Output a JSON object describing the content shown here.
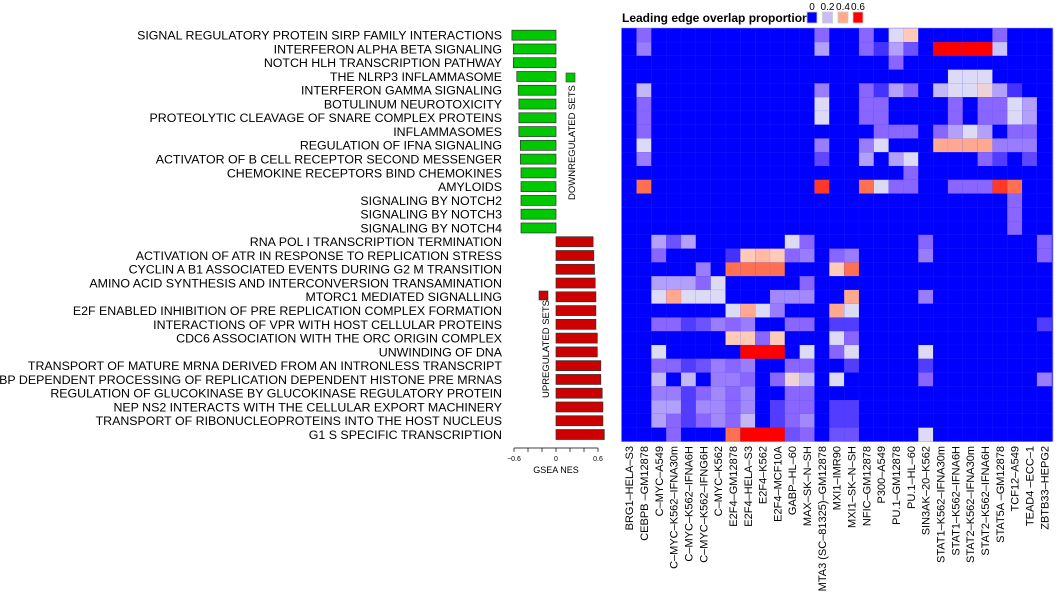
{
  "chart_data": [
    {
      "type": "bar",
      "orientation": "horizontal",
      "xlabel": "GSEA NES",
      "xlim": [
        -0.6,
        0.6
      ],
      "x_ticks": [
        -0.6,
        -0.4,
        -0.2,
        0,
        0.2,
        0.4,
        0.6
      ],
      "x_tick_labels": [
        "−0.6",
        "0",
        "0.6"
      ],
      "categories": [
        "SIGNAL REGULATORY PROTEIN SIRP FAMILY INTERACTIONS",
        "INTERFERON ALPHA BETA SIGNALING",
        "NOTCH HLH TRANSCRIPTION PATHWAY",
        "THE NLRP3 INFLAMMASOME",
        "INTERFERON GAMMA SIGNALING",
        "BOTULINUM NEUROTOXICITY",
        "PROTEOLYTIC CLEAVAGE OF SNARE COMPLEX PROTEINS",
        "INFLAMMASOMES",
        "REGULATION OF IFNA SIGNALING",
        "ACTIVATOR OF B CELL RECEPTOR SECOND MESSENGER",
        "CHEMOKINE RECEPTORS BIND CHEMOKINES",
        "AMYLOIDS",
        "SIGNALING BY NOTCH2",
        "SIGNALING BY NOTCH3",
        "SIGNALING BY NOTCH4",
        "RNA POL I TRANSCRIPTION TERMINATION",
        "ACTIVATION OF ATR IN RESPONSE TO REPLICATION STRESS",
        "CYCLIN A B1 ASSOCIATED EVENTS DURING G2 M TRANSITION",
        "AMINO ACID SYNTHESIS AND INTERCONVERSION TRANSAMINATION",
        "MTORC1 MEDIATED SIGNALLING",
        "E2F ENABLED INHIBITION OF PRE REPLICATION COMPLEX FORMATION",
        "INTERACTIONS OF VPR WITH HOST CELLULAR PROTEINS",
        "CDC6 ASSOCIATION WITH THE ORC ORIGIN COMPLEX",
        "UNWINDING OF DNA",
        "TRANSPORT OF MATURE MRNA DERIVED FROM AN INTRONLESS TRANSCRIPT",
        "SLBP DEPENDENT PROCESSING OF REPLICATION DEPENDENT HISTONE PRE MRNAS",
        "REGULATION OF GLUCOKINASE BY GLUCOKINASE REGULATORY PROTEIN",
        "NEP NS2 INTERACTS WITH THE CELLULAR EXPORT MACHINERY",
        "TRANSPORT OF RIBONUCLEOPROTEINS INTO THE HOST NUCLEUS",
        "G1 S SPECIFIC TRANSCRIPTION"
      ],
      "values": [
        -0.63,
        -0.61,
        -0.61,
        -0.56,
        -0.54,
        -0.53,
        -0.53,
        -0.53,
        -0.51,
        -0.51,
        -0.5,
        -0.5,
        -0.5,
        -0.5,
        -0.5,
        0.53,
        0.54,
        0.55,
        0.56,
        0.57,
        0.57,
        0.57,
        0.59,
        0.59,
        0.64,
        0.64,
        0.66,
        0.67,
        0.67,
        0.69
      ],
      "groups": [
        {
          "name": "DOWNREGULATED SETS",
          "color": "#00c800"
        },
        {
          "name": "UPREGULATED SETS",
          "color": "#cc0000"
        }
      ]
    },
    {
      "type": "heatmap",
      "title": "Leading edge overlap proportion",
      "legend": {
        "labels": [
          "0",
          "0.2",
          "0.4",
          "0.6"
        ],
        "values": [
          0,
          0.2,
          0.4,
          0.6
        ],
        "colors": [
          "#0000ff",
          "#cbbcf5",
          "#ffaa8a",
          "#ff0000"
        ],
        "placement": "top-right"
      },
      "columns": [
        "BRG1–HELA–S3",
        "CEBPB –GM12878",
        "C–MYC–A549",
        "C–MYC–K562–IFNA30m",
        "C–MYC–K562–IFNA6H",
        "C–MYC–K562–IFNG6H",
        "C–MYC–K562",
        "E2F4–GM12878",
        "E2F4–HELA–S3",
        "E2F4–K562",
        "E2F4–MCF10A",
        "GABP–HL–60",
        "MAX–SK–N–SH",
        "MTA3 (SC–81325)–GM12878",
        "MXI1–IMR90",
        "MXI1–SK–N–SH",
        "NFIC–GM12878",
        "P300–A549",
        "PU.1–GM12878",
        "PU.1–HL–60",
        "SIN3AK–20–K562",
        "STAT1–K562–IFNA30m",
        "STAT1–K562–IFNA6H",
        "STAT2–K562–IFNA30m",
        "STAT2–K562–IFNA6H",
        "STAT5A –GM12878",
        "TCF12–A549",
        "TEAD4 –ECC–1",
        "ZBTB33–HEPG2"
      ],
      "values": [
        [
          0,
          0.1,
          0,
          0,
          0,
          0,
          0,
          0,
          0,
          0,
          0,
          0,
          0,
          0.1,
          0,
          0,
          0.1,
          0,
          0.2,
          0.3,
          0,
          0,
          0,
          0,
          0,
          0.1,
          0,
          0,
          0
        ],
        [
          0,
          0.12,
          0,
          0,
          0,
          0,
          0,
          0,
          0,
          0,
          0,
          0,
          0,
          0.15,
          0,
          0,
          0.1,
          0.05,
          0.15,
          0.08,
          0,
          0.6,
          0.6,
          0.6,
          0.6,
          0.18,
          0,
          0,
          0
        ],
        [
          0,
          0,
          0,
          0,
          0,
          0,
          0,
          0,
          0,
          0,
          0,
          0,
          0,
          0,
          0,
          0,
          0,
          0,
          0.1,
          0,
          0,
          0,
          0,
          0,
          0,
          0,
          0,
          0,
          0
        ],
        [
          0,
          0,
          0,
          0,
          0,
          0,
          0,
          0,
          0,
          0,
          0,
          0,
          0,
          0,
          0,
          0,
          0,
          0,
          0,
          0,
          0,
          0,
          0.2,
          0.2,
          0.2,
          0,
          0,
          0,
          0
        ],
        [
          0,
          0.17,
          0,
          0,
          0,
          0,
          0,
          0,
          0,
          0,
          0,
          0,
          0,
          0.12,
          0,
          0,
          0.1,
          0.05,
          0.15,
          0.1,
          0,
          0.17,
          0.2,
          0.2,
          0.25,
          0.15,
          0.05,
          0,
          0
        ],
        [
          0,
          0.1,
          0,
          0,
          0,
          0,
          0,
          0,
          0,
          0,
          0,
          0,
          0,
          0.2,
          0,
          0,
          0.1,
          0.1,
          0,
          0,
          0,
          0,
          0.1,
          0,
          0.1,
          0.1,
          0.2,
          0.15,
          0
        ],
        [
          0,
          0.1,
          0,
          0,
          0,
          0,
          0,
          0,
          0,
          0,
          0,
          0,
          0,
          0.2,
          0,
          0,
          0.1,
          0.1,
          0,
          0,
          0,
          0,
          0.1,
          0,
          0.1,
          0.1,
          0.2,
          0.15,
          0
        ],
        [
          0,
          0.1,
          0,
          0,
          0,
          0,
          0,
          0,
          0,
          0,
          0,
          0,
          0,
          0,
          0,
          0,
          0,
          0.1,
          0.1,
          0.1,
          0,
          0.1,
          0.15,
          0.2,
          0.15,
          0,
          0.1,
          0.1,
          0
        ],
        [
          0,
          0.2,
          0,
          0,
          0,
          0,
          0,
          0,
          0,
          0,
          0,
          0,
          0,
          0.12,
          0,
          0,
          0.12,
          0.2,
          0,
          0,
          0,
          0.4,
          0.4,
          0.4,
          0.4,
          0.12,
          0.12,
          0.12,
          0
        ],
        [
          0,
          0.12,
          0,
          0,
          0,
          0,
          0,
          0,
          0,
          0,
          0,
          0,
          0,
          0.07,
          0,
          0,
          0.15,
          0,
          0.15,
          0.2,
          0,
          0,
          0,
          0,
          0.1,
          0.06,
          0,
          0.07,
          0
        ],
        [
          0,
          0,
          0,
          0,
          0,
          0,
          0,
          0,
          0,
          0,
          0,
          0,
          0,
          0,
          0,
          0,
          0,
          0,
          0,
          0.1,
          0,
          0,
          0,
          0,
          0,
          0,
          0,
          0,
          0
        ],
        [
          0,
          0.5,
          0,
          0,
          0,
          0,
          0,
          0,
          0,
          0,
          0,
          0,
          0,
          0.55,
          0,
          0,
          0.5,
          0.2,
          0.1,
          0.1,
          0,
          0,
          0.1,
          0.1,
          0.1,
          0.55,
          0.5,
          0,
          0
        ],
        [
          0,
          0,
          0,
          0,
          0,
          0,
          0,
          0,
          0,
          0,
          0,
          0,
          0,
          0,
          0,
          0,
          0,
          0,
          0,
          0,
          0,
          0,
          0,
          0,
          0,
          0,
          0.1,
          0,
          0
        ],
        [
          0,
          0,
          0,
          0,
          0,
          0,
          0,
          0,
          0,
          0,
          0,
          0,
          0,
          0,
          0,
          0,
          0,
          0,
          0,
          0,
          0,
          0,
          0,
          0,
          0,
          0,
          0.1,
          0,
          0
        ],
        [
          0,
          0,
          0,
          0,
          0,
          0,
          0,
          0,
          0,
          0,
          0,
          0,
          0,
          0,
          0,
          0,
          0,
          0,
          0,
          0,
          0,
          0,
          0,
          0,
          0,
          0,
          0.1,
          0,
          0
        ],
        [
          0,
          0,
          0.15,
          0.08,
          0.15,
          0,
          0,
          0,
          0,
          0,
          0,
          0.2,
          0.1,
          0,
          0,
          0,
          0,
          0,
          0,
          0,
          0.1,
          0,
          0,
          0,
          0,
          0,
          0,
          0,
          0.1
        ],
        [
          0,
          0,
          0.1,
          0,
          0,
          0,
          0,
          0.05,
          0.3,
          0.35,
          0.3,
          0.1,
          0.12,
          0,
          0.1,
          0.12,
          0,
          0,
          0,
          0,
          0.12,
          0,
          0,
          0,
          0,
          0,
          0,
          0,
          0.1
        ],
        [
          0,
          0,
          0,
          0,
          0,
          0.12,
          0,
          0.5,
          0.5,
          0.5,
          0.5,
          0,
          0,
          0,
          0.3,
          0.5,
          0,
          0,
          0,
          0,
          0,
          0,
          0,
          0,
          0,
          0,
          0,
          0,
          0
        ],
        [
          0,
          0,
          0.15,
          0.15,
          0.15,
          0.1,
          0.2,
          0,
          0,
          0,
          0,
          0,
          0.1,
          0,
          0,
          0,
          0,
          0,
          0,
          0,
          0,
          0,
          0,
          0,
          0,
          0,
          0,
          0,
          0
        ],
        [
          0,
          0,
          0.2,
          0.4,
          0.2,
          0.2,
          0.2,
          0,
          0,
          0,
          0.13,
          0.13,
          0.13,
          0,
          0,
          0.4,
          0,
          0,
          0,
          0,
          0.12,
          0,
          0,
          0,
          0,
          0,
          0,
          0,
          0
        ],
        [
          0,
          0,
          0,
          0,
          0,
          0,
          0,
          0.2,
          0.4,
          0.2,
          0.12,
          0,
          0,
          0,
          0.4,
          0.2,
          0,
          0,
          0,
          0,
          0,
          0,
          0,
          0,
          0,
          0,
          0,
          0,
          0
        ],
        [
          0,
          0,
          0.1,
          0.1,
          0.06,
          0.08,
          0.12,
          0.1,
          0.12,
          0,
          0,
          0.1,
          0.1,
          0,
          0.06,
          0.06,
          0,
          0,
          0,
          0,
          0,
          0,
          0,
          0,
          0,
          0,
          0,
          0,
          0.06
        ],
        [
          0,
          0,
          0,
          0,
          0,
          0,
          0,
          0.3,
          0.3,
          0.1,
          0.3,
          0,
          0,
          0,
          0.2,
          0.1,
          0,
          0,
          0,
          0,
          0,
          0,
          0,
          0,
          0,
          0,
          0,
          0,
          0
        ],
        [
          0,
          0,
          0.2,
          0,
          0,
          0,
          0,
          0,
          0.6,
          0.6,
          0.6,
          0,
          0.2,
          0,
          0.1,
          0.2,
          0,
          0,
          0,
          0,
          0.2,
          0,
          0,
          0,
          0,
          0,
          0,
          0,
          0
        ],
        [
          0,
          0,
          0.1,
          0.1,
          0.06,
          0.08,
          0.12,
          0.1,
          0.12,
          0,
          0,
          0.1,
          0.1,
          0,
          0,
          0.06,
          0,
          0,
          0,
          0,
          0.06,
          0,
          0,
          0,
          0,
          0,
          0,
          0,
          0
        ],
        [
          0,
          0,
          0.17,
          0,
          0.17,
          0,
          0.12,
          0.12,
          0.1,
          0,
          0.1,
          0.25,
          0.17,
          0,
          0.2,
          0,
          0,
          0,
          0,
          0,
          0.1,
          0,
          0,
          0,
          0,
          0,
          0,
          0,
          0.12
        ],
        [
          0,
          0,
          0.12,
          0.12,
          0.06,
          0.1,
          0.13,
          0.1,
          0.13,
          0,
          0,
          0.1,
          0.1,
          0,
          0,
          0,
          0,
          0,
          0,
          0,
          0,
          0,
          0,
          0,
          0,
          0,
          0,
          0,
          0
        ],
        [
          0,
          0,
          0.15,
          0.15,
          0.06,
          0.13,
          0.13,
          0.1,
          0.13,
          0,
          0.06,
          0.1,
          0.1,
          0,
          0.06,
          0.06,
          0,
          0,
          0,
          0,
          0,
          0,
          0,
          0,
          0,
          0,
          0,
          0,
          0
        ],
        [
          0,
          0,
          0.15,
          0.1,
          0.06,
          0.1,
          0.13,
          0.1,
          0.17,
          0,
          0.06,
          0.1,
          0.13,
          0,
          0.06,
          0.06,
          0,
          0,
          0,
          0,
          0,
          0,
          0,
          0,
          0,
          0,
          0,
          0,
          0
        ],
        [
          0,
          0,
          0,
          0.1,
          0,
          0,
          0,
          0.5,
          0.6,
          0.6,
          0.6,
          0.08,
          0.1,
          0,
          0.08,
          0.08,
          0,
          0,
          0,
          0,
          0.2,
          0,
          0,
          0,
          0,
          0,
          0,
          0,
          0
        ]
      ]
    }
  ]
}
